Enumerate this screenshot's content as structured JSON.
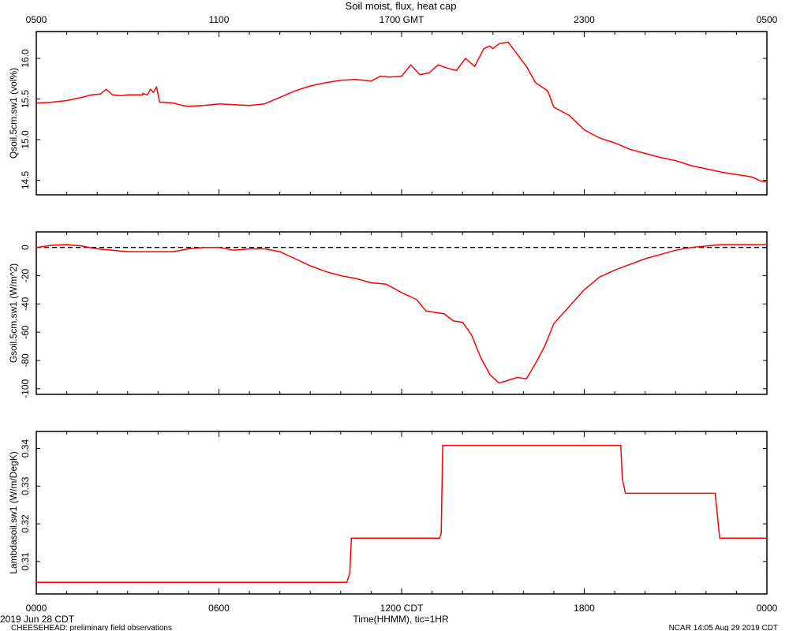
{
  "title": "Soil moist, flux, heat cap",
  "top_axis": {
    "tick_labels": [
      "0500",
      "1100",
      "1700 GMT",
      "2300",
      "0500"
    ]
  },
  "bottom_axis": {
    "tick_labels": [
      "0000",
      "0600",
      "1200 CDT",
      "1800",
      "0000"
    ],
    "xlabel": "Time(HHMM), tic=1HR"
  },
  "footer": {
    "date_left": "2019 Jun 28 CDT",
    "project": "CHEESEHEAD: preliminary field observations",
    "credit": "NCAR 14:05 Aug 29 2019 CDT"
  },
  "colors": {
    "series": "#ff0000",
    "axes": "#000000",
    "zero_line": "#000000"
  },
  "chart_data": [
    {
      "type": "line",
      "ylabel": "Qsoil.5cm.sw1 (vol%)",
      "xlim": [
        0,
        24
      ],
      "ylim": [
        14.32,
        16.33
      ],
      "yticks": [
        14.5,
        15.0,
        15.5,
        16.0
      ],
      "ytick_labels": [
        "14.5",
        "15.0",
        "15.5",
        "16.0"
      ],
      "series": [
        {
          "x": [
            0,
            0.5,
            1,
            1.5,
            1.8,
            2.1,
            2.3,
            2.5,
            2.8,
            3,
            3.5,
            3.5,
            3.65,
            3.75,
            3.85,
            3.95,
            4.05,
            4.2,
            4.5,
            4.8,
            5,
            5.5,
            6,
            6.5,
            7,
            7.5,
            8,
            8.5,
            9,
            9.5,
            10,
            10.5,
            11,
            11.3,
            11.6,
            12,
            12.3,
            12.6,
            12.9,
            13.2,
            13.5,
            13.8,
            14.1,
            14.4,
            14.7,
            14.9,
            15,
            15.2,
            15.5,
            15.7,
            15.9,
            16.1,
            16.4,
            16.8,
            17,
            17.5,
            18,
            18.5,
            19,
            19.5,
            20,
            20.5,
            21,
            21.5,
            22,
            22.5,
            23,
            23.5,
            23.8,
            24
          ],
          "y": [
            15.45,
            15.46,
            15.48,
            15.52,
            15.55,
            15.56,
            15.62,
            15.55,
            15.54,
            15.55,
            15.55,
            15.57,
            15.55,
            15.62,
            15.58,
            15.65,
            15.46,
            15.46,
            15.45,
            15.42,
            15.41,
            15.42,
            15.44,
            15.43,
            15.42,
            15.44,
            15.52,
            15.6,
            15.66,
            15.7,
            15.73,
            15.74,
            15.72,
            15.78,
            15.77,
            15.78,
            15.92,
            15.8,
            15.82,
            15.92,
            15.88,
            15.85,
            16.0,
            15.9,
            16.12,
            16.15,
            16.12,
            16.18,
            16.2,
            16.1,
            16.0,
            15.9,
            15.7,
            15.6,
            15.4,
            15.3,
            15.12,
            15.02,
            14.96,
            14.88,
            14.83,
            14.78,
            14.74,
            14.68,
            14.64,
            14.6,
            14.57,
            14.54,
            14.49,
            14.48
          ]
        }
      ]
    },
    {
      "type": "line",
      "ylabel": "Gsoil.5cm.sw1 (W/m^2)",
      "xlim": [
        0,
        24
      ],
      "ylim": [
        -104,
        11
      ],
      "yticks": [
        -100,
        -80,
        -60,
        -40,
        -20,
        0
      ],
      "ytick_labels": [
        "-100",
        "-80",
        "-60",
        "-40",
        "-20",
        "0"
      ],
      "zero_line": true,
      "series": [
        {
          "x": [
            0,
            0.5,
            1,
            1.5,
            2,
            2.5,
            3,
            3.5,
            4,
            4.5,
            5,
            5.5,
            6,
            6.5,
            7,
            7.5,
            8,
            8.5,
            9,
            9.5,
            10,
            10.5,
            11,
            11.5,
            12,
            12.5,
            12.8,
            13.1,
            13.4,
            13.7,
            14,
            14.3,
            14.6,
            14.9,
            15.2,
            15.5,
            15.8,
            16.1,
            16.4,
            16.7,
            17,
            17.5,
            18,
            18.5,
            19,
            19.5,
            20,
            20.5,
            21,
            21.5,
            22,
            22.5,
            23,
            23.5,
            24
          ],
          "y": [
            0,
            1.5,
            2,
            1,
            -1,
            -2,
            -3,
            -3,
            -3,
            -3,
            -1,
            0,
            0,
            -2,
            -1,
            -1,
            -3,
            -8,
            -13,
            -17,
            -20,
            -22,
            -25,
            -26,
            -32,
            -37,
            -45,
            -46,
            -47,
            -52,
            -53,
            -62,
            -78,
            -90,
            -96,
            -94,
            -92,
            -93,
            -82,
            -70,
            -54,
            -42,
            -30,
            -21,
            -16,
            -12,
            -8,
            -5,
            -2,
            0,
            1,
            2,
            2,
            2,
            2
          ]
        }
      ]
    },
    {
      "type": "line",
      "ylabel": "Lambdasoil.sw1 (W/m/DegK)",
      "xlim": [
        0,
        24
      ],
      "ylim": [
        0.3014,
        0.3445
      ],
      "yticks": [
        0.31,
        0.32,
        0.33,
        0.34
      ],
      "ytick_labels": [
        "0.31",
        "0.32",
        "0.33",
        "0.34"
      ],
      "series": [
        {
          "x": [
            0,
            10.2,
            10.3,
            10.35,
            13.25,
            13.3,
            13.35,
            19.2,
            19.25,
            19.35,
            22.3,
            22.45,
            24
          ],
          "y": [
            0.3045,
            0.3045,
            0.307,
            0.3162,
            0.3162,
            0.3175,
            0.3408,
            0.3408,
            0.332,
            0.3281,
            0.3281,
            0.3162,
            0.3162
          ]
        }
      ]
    }
  ]
}
